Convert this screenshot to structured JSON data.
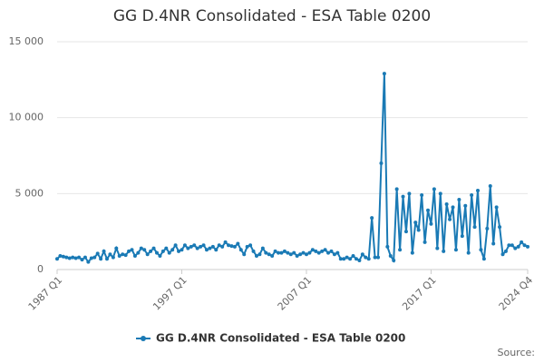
{
  "chart_data": {
    "type": "line",
    "title": "GG D.4NR Consolidated - ESA Table 0200",
    "source": "Source:",
    "categories": [
      "1987 Q1",
      null,
      null,
      null,
      null,
      null,
      null,
      null,
      null,
      null,
      null,
      null,
      null,
      null,
      null,
      null,
      null,
      null,
      null,
      null,
      null,
      null,
      null,
      null,
      null,
      null,
      null,
      null,
      null,
      null,
      null,
      null,
      null,
      null,
      null,
      null,
      null,
      null,
      null,
      null,
      "1997 Q1",
      null,
      null,
      null,
      null,
      null,
      null,
      null,
      null,
      null,
      null,
      null,
      null,
      null,
      null,
      null,
      null,
      null,
      null,
      null,
      null,
      null,
      null,
      null,
      null,
      null,
      null,
      null,
      null,
      null,
      null,
      null,
      null,
      null,
      null,
      null,
      null,
      null,
      null,
      null,
      "2007 Q1",
      null,
      null,
      null,
      null,
      null,
      null,
      null,
      null,
      null,
      null,
      null,
      null,
      null,
      null,
      null,
      null,
      null,
      null,
      null,
      null,
      null,
      null,
      null,
      null,
      null,
      null,
      null,
      null,
      null,
      null,
      null,
      null,
      null,
      null,
      null,
      null,
      null,
      null,
      null,
      "2017 Q1",
      null,
      null,
      null,
      null,
      null,
      null,
      null,
      null,
      null,
      null,
      null,
      null,
      null,
      null,
      null,
      null,
      null,
      null,
      null,
      null,
      null,
      null,
      null,
      null,
      null,
      null,
      null,
      null,
      null,
      null,
      "2024 Q4"
    ],
    "series": [
      {
        "name": "GG D.4NR Consolidated - ESA Table 0200",
        "color": "#1a7ab5",
        "values": [
          700,
          900,
          850,
          800,
          750,
          800,
          750,
          800,
          650,
          800,
          500,
          750,
          800,
          1050,
          700,
          1200,
          700,
          1000,
          800,
          1400,
          900,
          1000,
          950,
          1200,
          1300,
          900,
          1100,
          1400,
          1300,
          1000,
          1200,
          1400,
          1100,
          900,
          1200,
          1400,
          1100,
          1300,
          1600,
          1200,
          1300,
          1600,
          1400,
          1500,
          1600,
          1400,
          1500,
          1600,
          1300,
          1400,
          1500,
          1300,
          1600,
          1500,
          1800,
          1600,
          1550,
          1500,
          1700,
          1300,
          1000,
          1500,
          1600,
          1200,
          900,
          1000,
          1400,
          1100,
          1000,
          900,
          1200,
          1100,
          1100,
          1200,
          1100,
          1000,
          1100,
          900,
          1000,
          1100,
          1000,
          1100,
          1300,
          1200,
          1100,
          1200,
          1300,
          1100,
          1200,
          1000,
          1100,
          700,
          700,
          800,
          700,
          900,
          700,
          600,
          1000,
          800,
          700,
          3400,
          800,
          800,
          7000,
          12900,
          1500,
          900,
          600,
          5300,
          1300,
          4800,
          2500,
          5000,
          1100,
          3100,
          2600,
          4900,
          1800,
          3900,
          3000,
          5300,
          1400,
          5000,
          1200,
          4300,
          3300,
          4100,
          1300,
          4600,
          2200,
          4200,
          1100,
          4900,
          2800,
          5200,
          1300,
          700,
          2700,
          5500,
          1700,
          4100,
          2800,
          1000,
          1200,
          1600,
          1600,
          1400,
          1500,
          1800,
          1600,
          1500
        ]
      }
    ],
    "ylim": [
      0,
      15000
    ],
    "yticks": [
      0,
      {
        "value": 5000,
        "label": "5 000"
      },
      {
        "value": 10000,
        "label": "10 000"
      },
      {
        "value": 15000,
        "label": "15 000"
      }
    ],
    "grid": true
  }
}
